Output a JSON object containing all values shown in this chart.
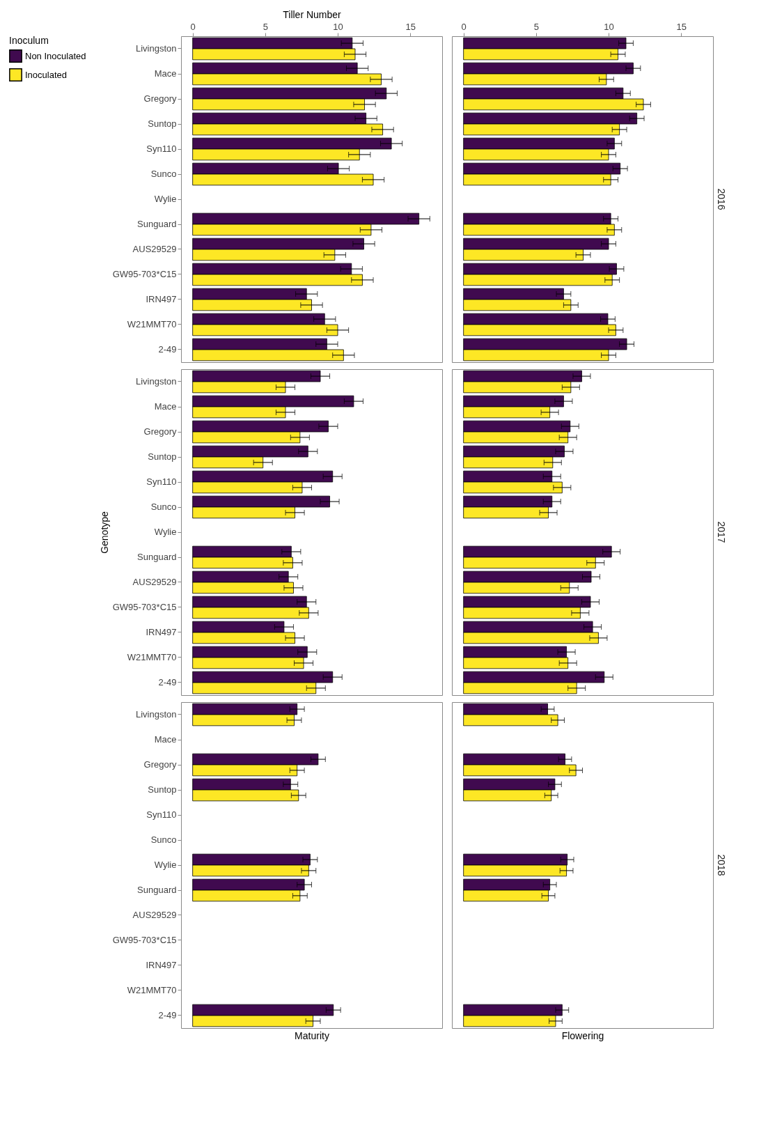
{
  "chart_data": [
    {
      "type": "bar",
      "orientation": "horizontal",
      "xlabel": "Tiller Number",
      "legend": "left",
      "legend_title": "Inoculum",
      "categories": [
        "Livingston",
        "Mace",
        "Gregory",
        "Suntop",
        "Syn110",
        "Sunco",
        "Wylie",
        "Sunguard",
        "AUS29529",
        "GW95-703*C15",
        "IRN497",
        "W21MMT70",
        "2-49"
      ],
      "xlim": [
        -0.8,
        17.2
      ],
      "xticks": [
        0,
        5,
        10,
        15
      ],
      "series": [
        {
          "name": "Non Inoculated",
          "color": "#400a4f",
          "values": [
            11.0,
            11.35,
            13.35,
            11.95,
            13.7,
            10.05,
            null,
            15.6,
            11.8,
            10.95,
            7.85,
            9.1,
            9.25
          ],
          "errors": [
            0.75,
            0.75,
            0.75,
            0.75,
            0.75,
            0.75,
            null,
            0.75,
            0.75,
            0.75,
            0.75,
            0.75,
            0.75
          ]
        },
        {
          "name": "Inoculated",
          "color": "#fde725",
          "values": [
            11.2,
            13.0,
            11.85,
            13.1,
            11.5,
            12.45,
            null,
            12.3,
            9.8,
            11.7,
            8.2,
            10.0,
            10.4
          ],
          "errors": [
            0.75,
            0.75,
            0.75,
            0.75,
            0.75,
            0.75,
            null,
            0.75,
            0.75,
            0.75,
            0.75,
            0.75,
            0.75
          ]
        }
      ]
    },
    {
      "type": "bar",
      "orientation": "horizontal",
      "title": "2016",
      "tick_labels": "x",
      "categories": [
        "Livingston",
        "Mace",
        "Gregory",
        "Suntop",
        "Syn110",
        "Sunco",
        "Wylie",
        "Sunguard",
        "AUS29529",
        "GW95-703*C15",
        "IRN497",
        "W21MMT70",
        "2-49"
      ],
      "xlim": [
        -0.8,
        17.2
      ],
      "xticks": [
        0,
        5,
        10,
        15
      ],
      "series": [
        {
          "name": "Non Inoculated",
          "color": "#400a4f",
          "values": [
            11.2,
            11.7,
            11.0,
            11.95,
            10.4,
            10.8,
            null,
            10.15,
            10.0,
            10.55,
            6.9,
            9.95,
            11.25
          ],
          "errors": [
            0.5,
            0.5,
            0.5,
            0.5,
            0.5,
            0.5,
            null,
            0.5,
            0.5,
            0.5,
            0.5,
            0.5,
            0.5
          ]
        },
        {
          "name": "Inoculated",
          "color": "#fde725",
          "values": [
            10.65,
            9.85,
            12.4,
            10.75,
            10.0,
            10.15,
            null,
            10.4,
            8.25,
            10.25,
            7.4,
            10.5,
            10.0
          ],
          "errors": [
            0.5,
            0.5,
            0.5,
            0.5,
            0.5,
            0.5,
            null,
            0.5,
            0.5,
            0.5,
            0.5,
            0.5,
            0.5
          ]
        }
      ]
    },
    {
      "type": "bar",
      "orientation": "horizontal",
      "ylabel": "Genotype",
      "tick_labels": "y",
      "categories": [
        "Livingston",
        "Mace",
        "Gregory",
        "Suntop",
        "Syn110",
        "Sunco",
        "Wylie",
        "Sunguard",
        "AUS29529",
        "GW95-703*C15",
        "IRN497",
        "W21MMT70",
        "2-49"
      ],
      "xlim": [
        -0.8,
        17.2
      ],
      "xticks": [
        0,
        5,
        10,
        15
      ],
      "series": [
        {
          "name": "Non Inoculated",
          "color": "#400a4f",
          "values": [
            8.8,
            11.1,
            9.35,
            7.95,
            9.65,
            9.45,
            null,
            6.8,
            6.6,
            7.85,
            6.3,
            7.9,
            9.65
          ],
          "errors": [
            0.65,
            0.65,
            0.65,
            0.65,
            0.65,
            0.65,
            null,
            0.65,
            0.65,
            0.65,
            0.65,
            0.65,
            0.65
          ]
        },
        {
          "name": "Inoculated",
          "color": "#fde725",
          "values": [
            6.4,
            6.4,
            7.4,
            4.85,
            7.55,
            7.05,
            null,
            6.9,
            6.95,
            8.0,
            7.05,
            7.65,
            8.5
          ],
          "errors": [
            0.65,
            0.65,
            0.65,
            0.65,
            0.65,
            0.65,
            null,
            0.65,
            0.65,
            0.65,
            0.65,
            0.65,
            0.65
          ]
        }
      ]
    },
    {
      "type": "bar",
      "orientation": "horizontal",
      "title": "2017",
      "tick_labels": false,
      "categories": [
        "Livingston",
        "Mace",
        "Gregory",
        "Suntop",
        "Syn110",
        "Sunco",
        "Wylie",
        "Sunguard",
        "AUS29529",
        "GW95-703*C15",
        "IRN497",
        "W21MMT70",
        "2-49"
      ],
      "xlim": [
        -0.8,
        17.2
      ],
      "xticks": [
        0,
        5,
        10,
        15
      ],
      "series": [
        {
          "name": "Non Inoculated",
          "color": "#400a4f",
          "values": [
            8.15,
            6.9,
            7.35,
            6.95,
            6.1,
            6.1,
            null,
            10.2,
            8.8,
            8.75,
            8.9,
            7.1,
            9.7
          ],
          "errors": [
            0.6,
            0.6,
            0.6,
            0.6,
            0.6,
            0.6,
            null,
            0.6,
            0.6,
            0.6,
            0.6,
            0.6,
            0.6
          ]
        },
        {
          "name": "Inoculated",
          "color": "#fde725",
          "values": [
            7.4,
            5.95,
            7.2,
            6.15,
            6.8,
            5.85,
            null,
            9.1,
            7.3,
            8.05,
            9.3,
            7.2,
            7.8
          ],
          "errors": [
            0.6,
            0.6,
            0.6,
            0.6,
            0.6,
            0.6,
            null,
            0.6,
            0.6,
            0.6,
            0.6,
            0.6,
            0.6
          ]
        }
      ]
    },
    {
      "type": "bar",
      "orientation": "horizontal",
      "xlabel": "Maturity",
      "tick_labels": "y",
      "categories": [
        "Livingston",
        "Mace",
        "Gregory",
        "Suntop",
        "Syn110",
        "Sunco",
        "Wylie",
        "Sunguard",
        "AUS29529",
        "GW95-703*C15",
        "IRN497",
        "W21MMT70",
        "2-49"
      ],
      "xlim": [
        -0.8,
        17.2
      ],
      "xticks": [
        0,
        5,
        10,
        15
      ],
      "series": [
        {
          "name": "Non Inoculated",
          "color": "#400a4f",
          "values": [
            7.2,
            null,
            8.65,
            6.75,
            null,
            null,
            8.1,
            7.7,
            null,
            null,
            null,
            null,
            9.7
          ],
          "errors": [
            0.5,
            null,
            0.5,
            0.5,
            null,
            null,
            0.5,
            0.5,
            null,
            null,
            null,
            null,
            0.5
          ]
        },
        {
          "name": "Inoculated",
          "color": "#fde725",
          "values": [
            7.0,
            null,
            7.2,
            7.3,
            null,
            null,
            8.0,
            7.4,
            null,
            null,
            null,
            null,
            8.3
          ],
          "errors": [
            0.5,
            null,
            0.5,
            0.5,
            null,
            null,
            0.5,
            0.5,
            null,
            null,
            null,
            null,
            0.5
          ]
        }
      ]
    },
    {
      "type": "bar",
      "orientation": "horizontal",
      "title": "2018",
      "xlabel": "Flowering",
      "tick_labels": false,
      "categories": [
        "Livingston",
        "Mace",
        "Gregory",
        "Suntop",
        "Syn110",
        "Sunco",
        "Wylie",
        "Sunguard",
        "AUS29529",
        "GW95-703*C15",
        "IRN497",
        "W21MMT70",
        "2-49"
      ],
      "xlim": [
        -0.8,
        17.2
      ],
      "xticks": [
        0,
        5,
        10,
        15
      ],
      "series": [
        {
          "name": "Non Inoculated",
          "color": "#400a4f",
          "values": [
            5.8,
            null,
            7.0,
            6.3,
            null,
            null,
            7.15,
            5.95,
            null,
            null,
            null,
            null,
            6.8
          ],
          "errors": [
            0.45,
            null,
            0.45,
            0.45,
            null,
            null,
            0.45,
            0.45,
            null,
            null,
            null,
            null,
            0.45
          ]
        },
        {
          "name": "Inoculated",
          "color": "#fde725",
          "values": [
            6.5,
            null,
            7.75,
            6.05,
            null,
            null,
            7.1,
            5.85,
            null,
            null,
            null,
            null,
            6.35
          ],
          "errors": [
            0.45,
            null,
            0.45,
            0.45,
            null,
            null,
            0.45,
            0.45,
            null,
            null,
            null,
            null,
            0.45
          ]
        }
      ]
    }
  ]
}
